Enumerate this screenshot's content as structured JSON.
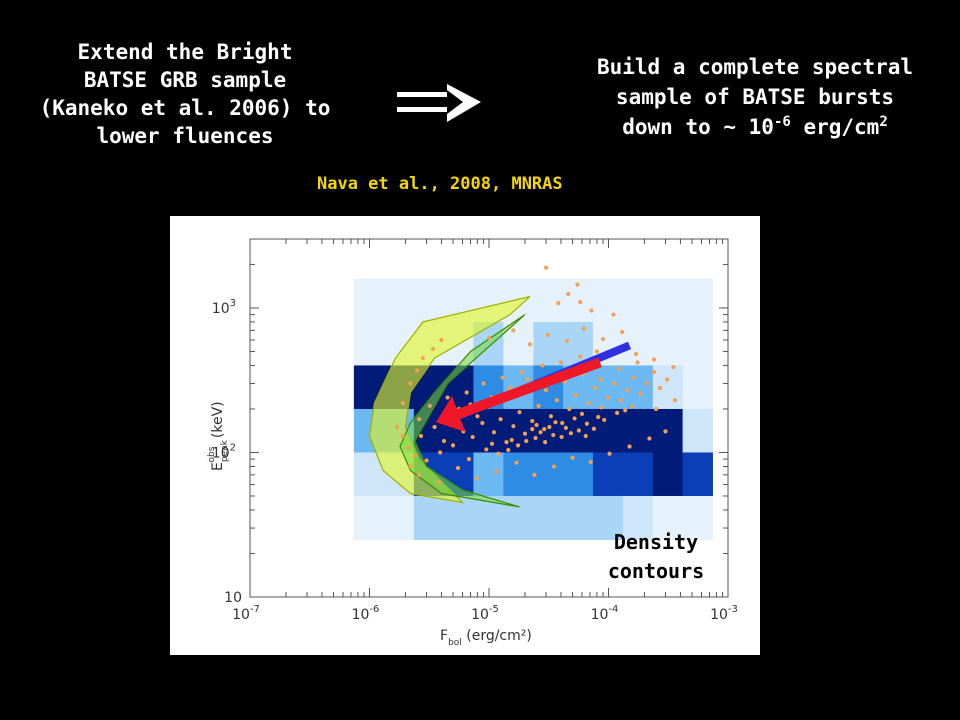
{
  "slide": {
    "left_text": [
      "Extend the Bright",
      "BATSE GRB sample",
      "(Kaneko et al. 2006) to",
      "lower fluences"
    ],
    "right_text": {
      "line1": "Build a complete spectral",
      "line2": "sample of BATSE bursts",
      "line3_prefix": "down to ~ 10",
      "line3_exp": "-6",
      "line3_mid": " erg/cm",
      "line3_sup": "2"
    },
    "citation": "Nava et al., 2008, MNRAS",
    "arrow_icon": "double-arrow-right-icon",
    "annotation": [
      "Density",
      "contours"
    ]
  },
  "chart_data": {
    "type": "heatmap",
    "xscale": "log",
    "yscale": "log",
    "xlim": [
      1e-07,
      0.001
    ],
    "ylim": [
      10,
      3000
    ],
    "xlabel": {
      "main": "F",
      "sub": "bol",
      "unit": "(erg/cm²)"
    },
    "ylabel": {
      "main": "E",
      "sub": "peak",
      "sup": "obs",
      "unit": "(keV)"
    },
    "x_ticks": [
      {
        "base": "10",
        "exp": "-7",
        "value": 1e-07
      },
      {
        "base": "10",
        "exp": "-6",
        "value": 1e-06
      },
      {
        "base": "10",
        "exp": "-5",
        "value": 1e-05
      },
      {
        "base": "10",
        "exp": "-4",
        "value": 0.0001
      },
      {
        "base": "10",
        "exp": "-3",
        "value": 0.001
      }
    ],
    "y_ticks": [
      {
        "base": "10",
        "exp": "",
        "value": 10
      },
      {
        "base": "10",
        "exp": "2",
        "value": 100
      },
      {
        "base": "10",
        "exp": "3",
        "value": 1000
      }
    ],
    "x_bin_edges": [
      7.4e-07,
      1.32e-06,
      2.35e-06,
      4.17e-06,
      7.41e-06,
      1.32e-05,
      2.35e-05,
      4.17e-05,
      7.41e-05,
      0.000132,
      0.000235,
      0.000417,
      0.000741
    ],
    "y_bin_edges": [
      25,
      50,
      100,
      200,
      400,
      800,
      1600
    ],
    "density_levels": [
      0,
      1,
      2,
      3,
      4,
      5,
      6,
      7
    ],
    "level_colors": [
      "#ffffff",
      "#e6f2fb",
      "#cfe6fa",
      "#a9d6f7",
      "#6cb8f0",
      "#2f8ce4",
      "#0a3fb8",
      "#001b78"
    ],
    "density_grid": [
      [
        1,
        1,
        1,
        1,
        1,
        1,
        1,
        1,
        1,
        1,
        1,
        1
      ],
      [
        1,
        1,
        1,
        1,
        3,
        1,
        3,
        3,
        1,
        1,
        1,
        1
      ],
      [
        7,
        7,
        7,
        7,
        5,
        4,
        5,
        4,
        4,
        4,
        2,
        1
      ],
      [
        4,
        4,
        7,
        7,
        7,
        7,
        7,
        7,
        7,
        7,
        7,
        2
      ],
      [
        2,
        2,
        6,
        6,
        4,
        5,
        5,
        5,
        6,
        6,
        7,
        6
      ],
      [
        1,
        1,
        3,
        3,
        3,
        3,
        3,
        3,
        3,
        2,
        1,
        1
      ]
    ],
    "points": [
      [
        2.1e-06,
        108
      ],
      [
        2.4e-06,
        95
      ],
      [
        3e-06,
        88
      ],
      [
        2.7e-06,
        130
      ],
      [
        3.5e-06,
        150
      ],
      [
        4.2e-06,
        120
      ],
      [
        5e-06,
        112
      ],
      [
        6.1e-06,
        140
      ],
      [
        7.3e-06,
        128
      ],
      [
        8.8e-06,
        160
      ],
      [
        9.5e-06,
        105
      ],
      [
        1.1e-05,
        138
      ],
      [
        1.25e-05,
        170
      ],
      [
        1.4e-05,
        118
      ],
      [
        1.6e-05,
        152
      ],
      [
        1.8e-05,
        190
      ],
      [
        2e-05,
        135
      ],
      [
        2.3e-05,
        165
      ],
      [
        2.6e-05,
        210
      ],
      [
        2.9e-05,
        145
      ],
      [
        3.3e-05,
        178
      ],
      [
        3.7e-05,
        230
      ],
      [
        4.1e-05,
        160
      ],
      [
        4.7e-05,
        200
      ],
      [
        5.3e-05,
        250
      ],
      [
        6e-05,
        185
      ],
      [
        6.8e-05,
        220
      ],
      [
        7.7e-05,
        280
      ],
      [
        8.7e-05,
        205
      ],
      [
        9.9e-05,
        240
      ],
      [
        0.000112,
        300
      ],
      [
        0.000127,
        230
      ],
      [
        0.000144,
        270
      ],
      [
        0.000163,
        330
      ],
      [
        0.000185,
        255
      ],
      [
        0.00021,
        300
      ],
      [
        0.00024,
        360
      ],
      [
        0.00027,
        280
      ],
      [
        0.00031,
        320
      ],
      [
        0.00035,
        390
      ],
      [
        3.2e-06,
        210
      ],
      [
        4.5e-06,
        240
      ],
      [
        6.5e-06,
        260
      ],
      [
        9e-06,
        300
      ],
      [
        1.3e-05,
        330
      ],
      [
        1.9e-05,
        360
      ],
      [
        2.8e-05,
        400
      ],
      [
        4e-05,
        420
      ],
      [
        5.8e-05,
        460
      ],
      [
        8e-05,
        500
      ],
      [
        0.000115,
        520
      ],
      [
        0.00017,
        480
      ],
      [
        0.00024,
        440
      ],
      [
        1e-05,
        620
      ],
      [
        1.6e-05,
        700
      ],
      [
        2.2e-05,
        560
      ],
      [
        3.1e-05,
        650
      ],
      [
        4.5e-05,
        590
      ],
      [
        6.2e-05,
        720
      ],
      [
        9e-05,
        610
      ],
      [
        0.00013,
        680
      ],
      [
        2.6e-06,
        70
      ],
      [
        3.8e-06,
        62
      ],
      [
        5.5e-06,
        78
      ],
      [
        7.9e-06,
        66
      ],
      [
        1.15e-05,
        74
      ],
      [
        1.7e-05,
        85
      ],
      [
        2.4e-05,
        70
      ],
      [
        3.5e-05,
        80
      ],
      [
        5e-05,
        92
      ],
      [
        7.1e-05,
        86
      ],
      [
        0.000102,
        98
      ],
      [
        0.00015,
        110
      ],
      [
        0.00022,
        125
      ],
      [
        0.0003,
        140
      ],
      [
        1.7e-06,
        150
      ],
      [
        1.9e-06,
        220
      ],
      [
        2.2e-06,
        300
      ],
      [
        2.5e-06,
        370
      ],
      [
        2.8e-06,
        450
      ],
      [
        3.4e-06,
        520
      ],
      [
        4e-06,
        600
      ],
      [
        1.05e-05,
        240
      ],
      [
        1.5e-05,
        280
      ],
      [
        2.1e-05,
        320
      ],
      [
        3e-05,
        270
      ],
      [
        4.3e-05,
        310
      ],
      [
        6.1e-05,
        350
      ],
      [
        8.6e-05,
        320
      ],
      [
        0.000122,
        380
      ],
      [
        0.000175,
        420
      ],
      [
        0.00025,
        200
      ],
      [
        0.00036,
        230
      ],
      [
        3.8e-05,
        1080
      ],
      [
        4.6e-05,
        1250
      ],
      [
        5.8e-05,
        1100
      ],
      [
        7.2e-05,
        960
      ],
      [
        0.00011,
        900
      ],
      [
        3e-05,
        1900
      ],
      [
        5.5e-05,
        1450
      ],
      [
        2.3e-05,
        145
      ],
      [
        2.5e-05,
        155
      ],
      [
        2.7e-05,
        138
      ],
      [
        3.2e-05,
        150
      ],
      [
        3.6e-05,
        162
      ],
      [
        4.4e-05,
        148
      ],
      [
        5.2e-05,
        172
      ],
      [
        6.6e-05,
        158
      ],
      [
        8.2e-05,
        176
      ],
      [
        9.2e-05,
        168
      ],
      [
        0.000118,
        188
      ],
      [
        0.000138,
        196
      ],
      [
        0.000158,
        208
      ],
      [
        1.2e-05,
        98
      ],
      [
        1.45e-05,
        104
      ],
      [
        1.75e-05,
        112
      ],
      [
        2.05e-05,
        120
      ],
      [
        2.45e-05,
        126
      ],
      [
        2.95e-05,
        118
      ],
      [
        3.45e-05,
        132
      ],
      [
        4.05e-05,
        128
      ],
      [
        4.85e-05,
        136
      ],
      [
        5.65e-05,
        142
      ],
      [
        6.45e-05,
        130
      ],
      [
        7.55e-05,
        146
      ],
      [
        1.9e-06,
        130
      ],
      [
        2.6e-06,
        170
      ],
      [
        4.8e-06,
        185
      ],
      [
        7e-06,
        215
      ],
      [
        8e-06,
        178
      ],
      [
        5.6e-06,
        200
      ],
      [
        2.2e-06,
        80
      ],
      [
        3.9e-06,
        100
      ],
      [
        6.8e-06,
        90
      ],
      [
        1.06e-05,
        115
      ],
      [
        1.55e-05,
        122
      ]
    ],
    "point_color": "#f5a050",
    "overlays": {
      "yellow_band": [
        [
          2.2e-05,
          1200
        ],
        [
          2.8e-06,
          800
        ],
        [
          1.65e-06,
          450
        ],
        [
          1.1e-06,
          220
        ],
        [
          1e-06,
          130
        ],
        [
          1.3e-06,
          75
        ],
        [
          2.2e-06,
          52
        ],
        [
          6e-06,
          45
        ],
        [
          2.6e-06,
          90
        ],
        [
          2e-06,
          150
        ],
        [
          2.2e-06,
          260
        ],
        [
          3.5e-06,
          450
        ],
        [
          1.5e-05,
          900
        ]
      ],
      "green_band": [
        [
          2.2e-06,
          160
        ],
        [
          1.8e-06,
          110
        ],
        [
          2.2e-06,
          75
        ],
        [
          4e-06,
          52
        ],
        [
          1.8e-05,
          42
        ],
        [
          6e-06,
          55
        ],
        [
          3e-06,
          80
        ],
        [
          2.4e-06,
          120
        ],
        [
          4.5e-06,
          300
        ],
        [
          2e-05,
          900
        ],
        [
          7e-06,
          500
        ],
        [
          3.5e-06,
          260
        ]
      ],
      "red_arrow": {
        "from": [
          8.5e-05,
          420
        ],
        "to": [
          3.6e-06,
          162
        ]
      },
      "blue_arrow": {
        "from": [
          0.00015,
          550
        ],
        "to": [
          4e-06,
          160
        ]
      }
    }
  }
}
